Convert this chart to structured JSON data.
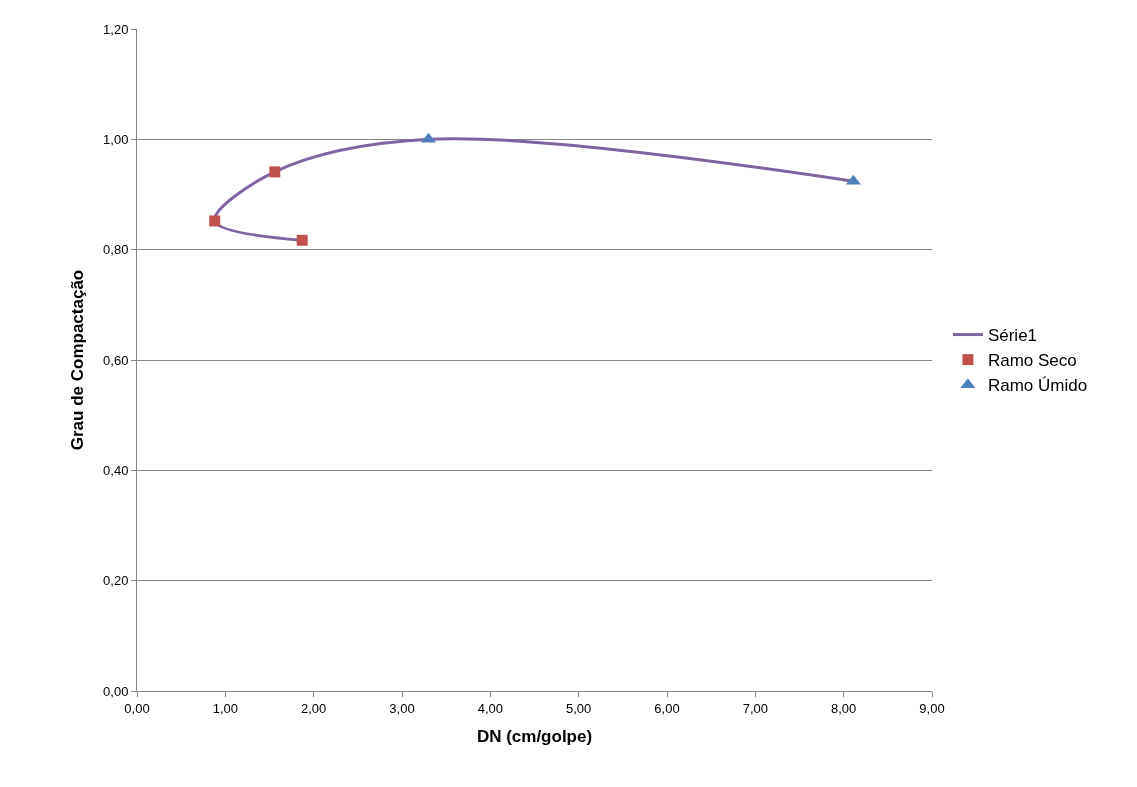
{
  "chart_data": {
    "type": "scatter",
    "xlabel": "DN (cm/golpe)",
    "ylabel": "Grau de Compactação",
    "series": [
      {
        "name": "Série1",
        "type": "line",
        "color": "#8064a2",
        "marker": "none",
        "x": [
          1.87,
          0.88,
          1.56,
          3.3,
          8.11
        ],
        "values": [
          0.817,
          0.852,
          0.941,
          1.0,
          0.924
        ]
      },
      {
        "name": "Ramo Seco",
        "color": "#c0504d",
        "marker": "square",
        "x": [
          0.88,
          1.56,
          1.87
        ],
        "values": [
          0.852,
          0.941,
          0.817
        ]
      },
      {
        "name": "Ramo Úmido",
        "color": "#4f81bd",
        "marker": "triangle",
        "x": [
          3.3,
          8.11
        ],
        "values": [
          1.0,
          0.924
        ]
      }
    ],
    "xlim": [
      0,
      9
    ],
    "ylim": [
      0,
      1.2
    ],
    "xticks": [
      {
        "value": 0,
        "label": "0,00"
      },
      {
        "value": 1,
        "label": "1,00"
      },
      {
        "value": 2,
        "label": "2,00"
      },
      {
        "value": 3,
        "label": "3,00"
      },
      {
        "value": 4,
        "label": "4,00"
      },
      {
        "value": 5,
        "label": "5,00"
      },
      {
        "value": 6,
        "label": "6,00"
      },
      {
        "value": 7,
        "label": "7,00"
      },
      {
        "value": 8,
        "label": "8,00"
      },
      {
        "value": 9,
        "label": "9,00"
      }
    ],
    "yticks": [
      {
        "value": 0,
        "label": "0,00"
      },
      {
        "value": 0.2,
        "label": "0,20"
      },
      {
        "value": 0.4,
        "label": "0,40"
      },
      {
        "value": 0.6,
        "label": "0,60"
      },
      {
        "value": 0.8,
        "label": "0,80"
      },
      {
        "value": 1.0,
        "label": "1,00"
      },
      {
        "value": 1.2,
        "label": "1,20"
      }
    ],
    "grid": "y",
    "legend": "right"
  }
}
